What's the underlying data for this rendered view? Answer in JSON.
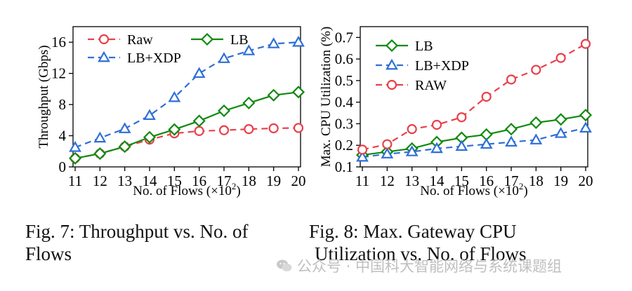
{
  "chart_data": [
    {
      "type": "line",
      "id": "throughput",
      "title": "",
      "xlabel": "No. of Flows (×10",
      "xlabel_sup": "2",
      "xlabel_end": ")",
      "ylabel": "Throughput (Gbps)",
      "x": [
        11,
        12,
        13,
        14,
        15,
        16,
        17,
        18,
        19,
        20
      ],
      "xlim": [
        11,
        20
      ],
      "ylim": [
        0,
        18
      ],
      "yticks": [
        0,
        4,
        8,
        12,
        16
      ],
      "legend_position": "top-left",
      "series": [
        {
          "name": "Raw",
          "color": "#e8414b",
          "marker": "circle",
          "dash": "dashed",
          "values": [
            1.1,
            1.7,
            2.6,
            3.5,
            4.3,
            4.6,
            4.7,
            4.85,
            4.95,
            5.0
          ]
        },
        {
          "name": "LB",
          "color": "#0f8a0f",
          "marker": "diamond",
          "dash": "solid",
          "values": [
            1.1,
            1.7,
            2.6,
            3.8,
            4.8,
            5.9,
            7.2,
            8.2,
            9.2,
            9.6
          ]
        },
        {
          "name": "LB+XDP",
          "color": "#2f6fd6",
          "marker": "triangle",
          "dash": "dashed",
          "values": [
            2.5,
            3.7,
            4.9,
            6.6,
            8.9,
            12.0,
            13.9,
            14.9,
            15.8,
            16.0
          ]
        }
      ]
    },
    {
      "type": "line",
      "id": "cpu",
      "title": "",
      "xlabel": "No. of Flows (×10",
      "xlabel_sup": "2",
      "xlabel_end": ")",
      "ylabel": "Max. CPU Utilization (%)",
      "x": [
        11,
        12,
        13,
        14,
        15,
        16,
        17,
        18,
        19,
        20
      ],
      "xlim": [
        11,
        20
      ],
      "ylim": [
        0.1,
        0.75
      ],
      "yticks": [
        0.1,
        0.2,
        0.3,
        0.4,
        0.5,
        0.6,
        0.7
      ],
      "legend_position": "top-left",
      "series": [
        {
          "name": "LB",
          "color": "#0f8a0f",
          "marker": "diamond",
          "dash": "solid",
          "values": [
            0.155,
            0.17,
            0.185,
            0.215,
            0.235,
            0.25,
            0.275,
            0.305,
            0.32,
            0.34
          ]
        },
        {
          "name": "LB+XDP",
          "color": "#2f6fd6",
          "marker": "triangle",
          "dash": "dashed",
          "values": [
            0.145,
            0.16,
            0.17,
            0.185,
            0.195,
            0.205,
            0.215,
            0.225,
            0.255,
            0.28
          ]
        },
        {
          "name": "RAW",
          "color": "#e8414b",
          "marker": "circle",
          "dash": "dashed",
          "values": [
            0.18,
            0.205,
            0.275,
            0.295,
            0.33,
            0.425,
            0.505,
            0.55,
            0.605,
            0.67
          ]
        }
      ]
    }
  ],
  "captions": {
    "left_line1": "Fig. 7: Throughput vs. No. of",
    "left_line2": "Flows",
    "right_line1": "Fig.  8:  Max.  Gateway  CPU",
    "right_line2": "Utilization vs. No. of Flows"
  },
  "watermark": "公众号 · 中国科大智能网络与系统课题组"
}
